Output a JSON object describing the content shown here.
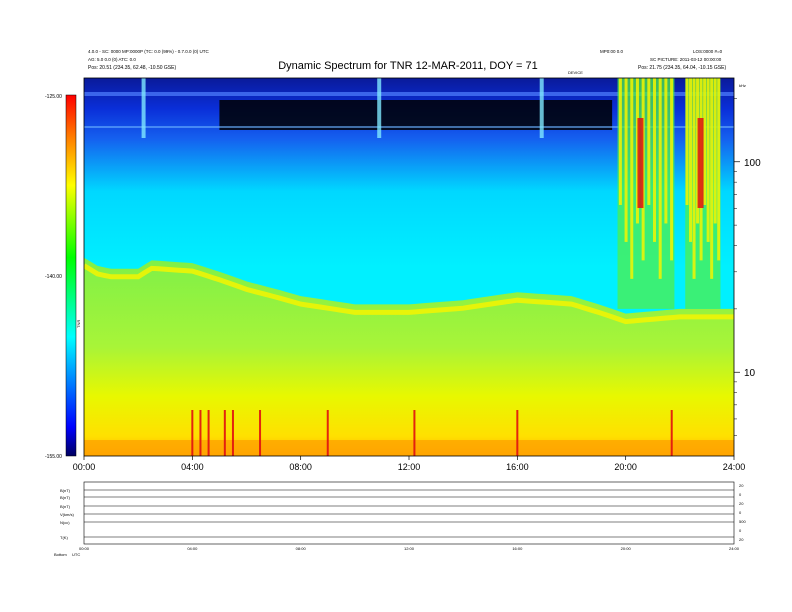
{
  "header": {
    "title": "Dynamic Spectrum for TNR 12-MAR-2011, DOY = 71",
    "left_line1": "4.0.0 - SC: 0000 MP:0000P (TC: 0.0 (99%) - 0.7.0.0 (0) UTC",
    "left_line2": "AG: 5.0 0.0 (0) ATC: 0.0",
    "left_pos": "Pos:    20.51 (234.35, 62.48, -10.50 GSE)",
    "right_top_left": "MP0:00 0.0",
    "right_top_right": "LOS:0000 #=0",
    "right_line2": "SC PICTURE: 2011-03-12 00:00:00",
    "right_pos": "Pos:    21.75 (234.35, 64.04, -10.15 GSE)",
    "marker_label": "DEVICE",
    "khz_label": "kHz"
  },
  "colorbar": {
    "max_label": "-125.00",
    "mid_label": "-140.00",
    "min_label": "-155.00",
    "unit_label": "TNR"
  },
  "panel_labels": {
    "rows": [
      "B(nT)",
      "B(nT)",
      "B(nT)",
      "V(km/s)",
      "N(cc)",
      "T(K)"
    ],
    "right_rows": [
      "20",
      "0",
      "20",
      "0",
      "500",
      "0",
      "20"
    ],
    "bottom_left": "Bottom",
    "bottom_left2": "UTC"
  },
  "colors": {
    "dark": "#000000",
    "blue": "#0a3ad8",
    "cyan": "#00f0ff",
    "green": "#4ef04a",
    "yellow": "#f4f400",
    "orange": "#ffa000",
    "red": "#e01010"
  },
  "chart_data": {
    "type": "heatmap",
    "title": "Dynamic Spectrum for TNR 12-MAR-2011, DOY = 71",
    "x_axis": {
      "ticks": [
        "00:00",
        "04:00",
        "08:00",
        "12:00",
        "16:00",
        "20:00",
        "24:00"
      ],
      "range_hours": [
        0,
        24
      ]
    },
    "y_axis_right": {
      "scale": "log",
      "unit": "kHz",
      "ticks": [
        "10",
        "100"
      ],
      "range_khz": [
        4,
        250
      ]
    },
    "colorbar_range_db": [
      -155.0,
      -125.0
    ],
    "colorbar_ticks": [
      "-125.00",
      "-140.00",
      "-155.00"
    ],
    "plasma_line_boundary": {
      "hours": [
        0,
        0.5,
        1,
        2,
        2.5,
        4,
        6,
        8,
        10,
        12,
        14,
        16,
        18,
        19.5,
        20,
        22,
        24
      ],
      "freq_khz": [
        35,
        32,
        31,
        31,
        34,
        33,
        27,
        23,
        21,
        21,
        22,
        24,
        23,
        20,
        19,
        20,
        20
      ]
    },
    "bursts": [
      {
        "hour_start": 19.7,
        "hour_end": 21.8,
        "freq_low_khz": 20,
        "freq_high_khz": 250
      },
      {
        "hour_start": 22.2,
        "hour_end": 23.5,
        "freq_low_khz": 20,
        "freq_high_khz": 250
      }
    ],
    "hot_spots_hours": [
      4.0,
      4.3,
      4.6,
      5.2,
      5.5,
      6.5,
      9.0,
      12.2,
      16.0,
      21.7
    ]
  },
  "lower_panel": {
    "ticks": [
      "00:00",
      "04:00",
      "08:00",
      "12:00",
      "16:00",
      "20:00",
      "24:00"
    ]
  }
}
